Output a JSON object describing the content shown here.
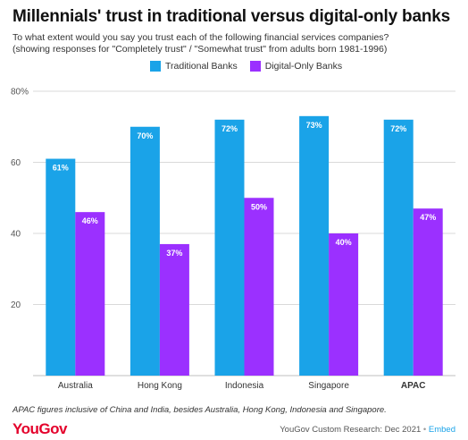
{
  "header": {
    "title": "Millennials' trust in traditional versus digital-only banks",
    "subtitle_line1": "To what extent would you say you trust each of the following financial services companies?",
    "subtitle_line2": "(showing responses for \"Completely trust\" / \"Somewhat trust\" from adults born 1981-1996)"
  },
  "colors": {
    "traditional": "#1aa3e8",
    "digital": "#9b30ff",
    "grid": "#d9d9d9",
    "axis_text": "#555555"
  },
  "chart_data": {
    "type": "bar",
    "categories": [
      "Australia",
      "Hong Kong",
      "Indonesia",
      "Singapore",
      "APAC"
    ],
    "series": [
      {
        "name": "Traditional Banks",
        "values": [
          61,
          70,
          72,
          73,
          72
        ],
        "labels": [
          "61%",
          "70%",
          "72%",
          "73%",
          "72%"
        ]
      },
      {
        "name": "Digital-Only Banks",
        "values": [
          46,
          37,
          50,
          40,
          47
        ],
        "labels": [
          "46%",
          "37%",
          "50%",
          "40%",
          "47%"
        ]
      }
    ],
    "yticks": [
      "20",
      "40",
      "60",
      "80%"
    ],
    "ytick_values": [
      20,
      40,
      60,
      80
    ],
    "ylim": [
      0,
      80
    ],
    "grid": true,
    "legend": "top",
    "bold_categories": [
      "APAC"
    ]
  },
  "footer": {
    "footnote": "APAC figures inclusive of China and India, besides Australia, Hong Kong, Indonesia and Singapore.",
    "brand": "YouGov",
    "source": "YouGov Custom Research: Dec 2021",
    "separator": "•",
    "embed": "Embed"
  }
}
